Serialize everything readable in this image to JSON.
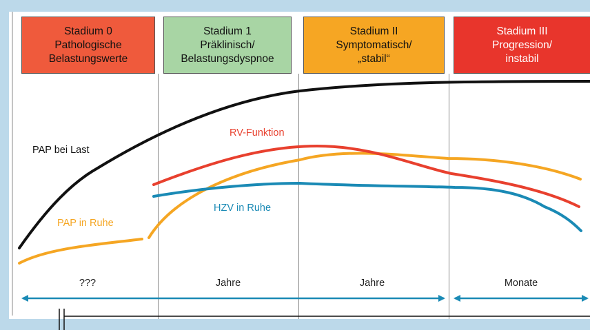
{
  "stages": [
    {
      "lines": [
        "Stadium 0",
        "Pathologische",
        "Belastungswerte"
      ],
      "color": "#ef5a3c"
    },
    {
      "lines": [
        "Stadium 1",
        "Präklinisch/",
        "Belastungsdyspnoe"
      ],
      "color": "#a8d5a4"
    },
    {
      "lines": [
        "Stadium II",
        "Symptomatisch/",
        "„stabil“"
      ],
      "color": "#f6a623"
    },
    {
      "lines": [
        "Stadium III",
        "Progression/",
        "instabil"
      ],
      "color": "#e8352c"
    }
  ],
  "curves": {
    "pap_last": {
      "label": "PAP bei Last",
      "color": "#111111"
    },
    "rv_funktion": {
      "label": "RV-Funktion",
      "color": "#e8402e"
    },
    "pap_ruhe": {
      "label": "PAP in Ruhe",
      "color": "#f5a623"
    },
    "hzv_ruhe": {
      "label": "HZV in Ruhe",
      "color": "#1a8ab5"
    }
  },
  "durations": [
    "???",
    "Jahre",
    "Jahre",
    "Monate"
  ],
  "arrow_color": "#1a8ab5"
}
